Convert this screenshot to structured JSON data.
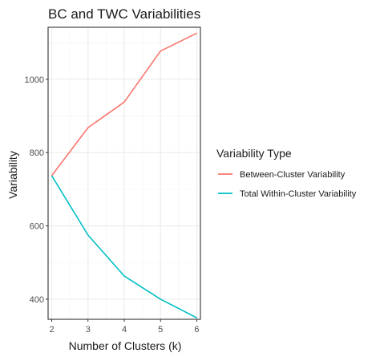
{
  "chart_data": {
    "type": "line",
    "title": "BC and TWC Variabilities",
    "xlabel": "Number of Clusters (k)",
    "ylabel": "Variability",
    "x": [
      2,
      3,
      4,
      5,
      6
    ],
    "xlim": [
      1.9,
      6.1
    ],
    "ylim": [
      345,
      1142
    ],
    "y_ticks": [
      400,
      600,
      800,
      1000
    ],
    "x_ticks": [
      2,
      3,
      4,
      5,
      6
    ],
    "grid": true,
    "legend": {
      "title": "Variability Type",
      "position": "right"
    },
    "series": [
      {
        "name": "Between-Cluster Variability",
        "color": "#F8766D",
        "values": [
          737,
          868,
          938,
          1077,
          1126
        ]
      },
      {
        "name": "Total Within-Cluster Variability",
        "color": "#00BFC4",
        "values": [
          737,
          575,
          463,
          400,
          349
        ]
      }
    ]
  }
}
